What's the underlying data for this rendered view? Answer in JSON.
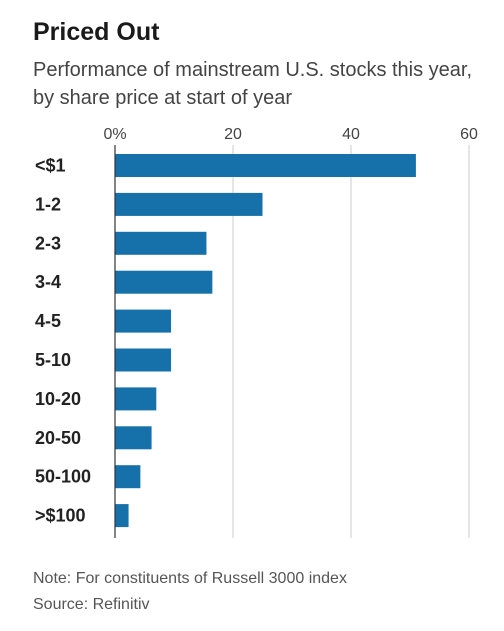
{
  "title": "Priced Out",
  "subtitle": "Performance of mainstream U.S. stocks this year, by share price at start of year",
  "note": "Note: For constituents of Russell 3000 index",
  "source": "Source: Refinitiv",
  "colors": {
    "bar": "#1670a9",
    "grid": "#cccccc",
    "axis": "#333333"
  },
  "chart_data": {
    "type": "bar",
    "orientation": "horizontal",
    "title": "",
    "xlabel": "",
    "ylabel": "",
    "categories": [
      "<$1",
      "1-2",
      "2-3",
      "3-4",
      "4-5",
      "5-10",
      "10-20",
      "20-50",
      "50-100",
      ">$100"
    ],
    "values": [
      51,
      25,
      15.5,
      16.5,
      9.5,
      9.5,
      7,
      6.2,
      4.3,
      2.3
    ],
    "xlim": [
      0,
      60
    ],
    "xticks": [
      0,
      20,
      40,
      60
    ],
    "xtick_labels": [
      "0%",
      "20",
      "40",
      "60"
    ],
    "grid": true,
    "axis_position": "top"
  }
}
